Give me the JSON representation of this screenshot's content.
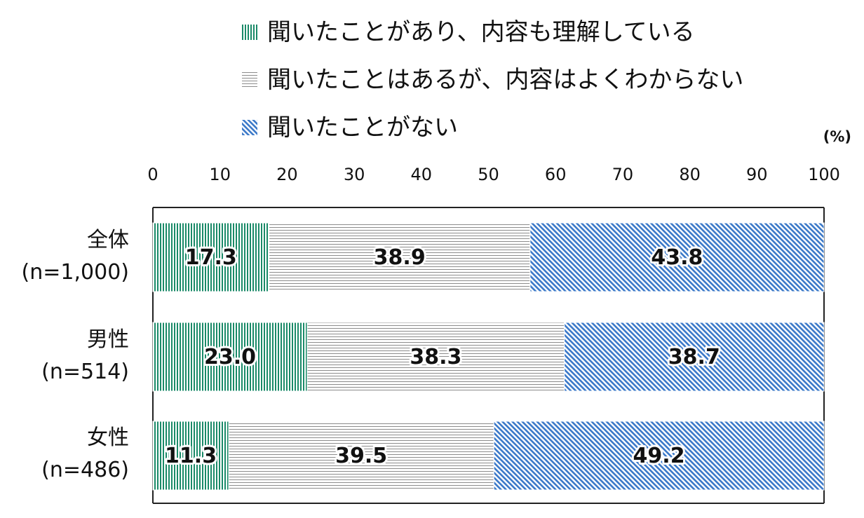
{
  "legend": [
    {
      "label": "聞いたことがあり、内容も理解している",
      "pattern": "vertical-stripes",
      "color": "#1a8a68"
    },
    {
      "label": "聞いたことはあるが、内容はよくわからない",
      "pattern": "horizontal-stripes",
      "color": "#8c8c8c"
    },
    {
      "label": "聞いたことがない",
      "pattern": "diagonal-stripes",
      "color": "#3a78c8"
    }
  ],
  "unit_label": "(%)",
  "chart_data": {
    "type": "bar",
    "orientation": "horizontal",
    "stacked": true,
    "categories": [
      {
        "name": "全体",
        "n": "(n=1,000)"
      },
      {
        "name": "男性",
        "n": "(n=514)"
      },
      {
        "name": "女性",
        "n": "(n=486)"
      }
    ],
    "series": [
      {
        "name": "聞いたことがあり、内容も理解している",
        "values": [
          17.3,
          23.0,
          11.3
        ],
        "labels": [
          "17.3",
          "23.0",
          "11.3"
        ]
      },
      {
        "name": "聞いたことはあるが、内容はよくわからない",
        "values": [
          38.9,
          38.3,
          39.5
        ],
        "labels": [
          "38.9",
          "38.3",
          "39.5"
        ]
      },
      {
        "name": "聞いたことがない",
        "values": [
          43.8,
          38.7,
          49.2
        ],
        "labels": [
          "43.8",
          "38.7",
          "49.2"
        ]
      }
    ],
    "xlim": [
      0,
      100
    ],
    "xticks": [
      "0",
      "10",
      "20",
      "30",
      "40",
      "50",
      "60",
      "70",
      "80",
      "90",
      "100"
    ],
    "grid": false,
    "legend_position": "top"
  }
}
